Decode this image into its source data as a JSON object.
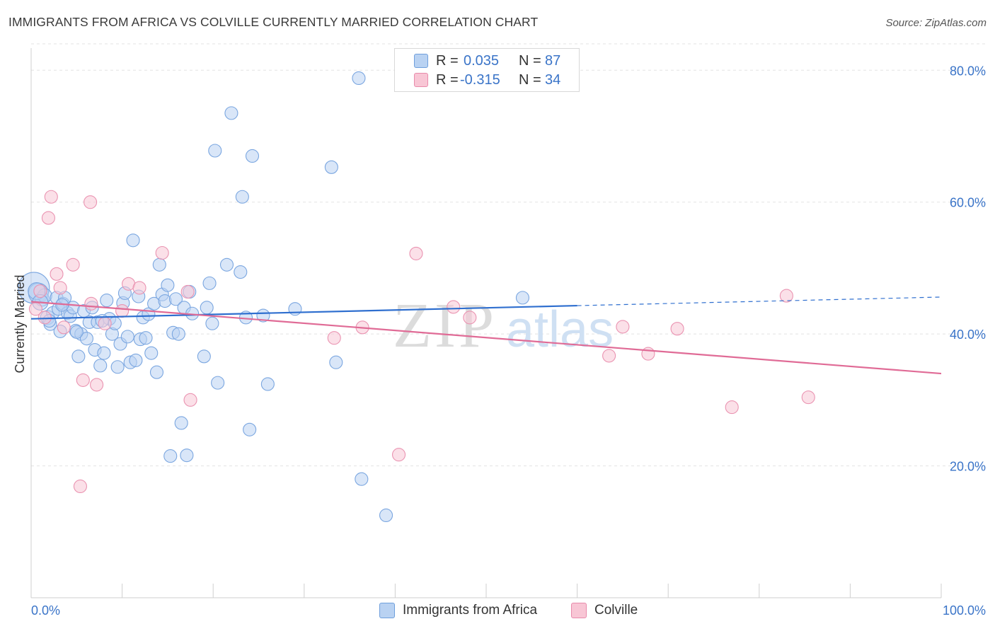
{
  "header": {
    "title": "IMMIGRANTS FROM AFRICA VS COLVILLE CURRENTLY MARRIED CORRELATION CHART",
    "source": "Source: ZipAtlas.com"
  },
  "legend": {
    "r_label": "R =",
    "n_label": "N =",
    "rows": [
      {
        "series": "Immigrants from Africa",
        "r": "0.035",
        "n": "87",
        "color": "#6f9fdc"
      },
      {
        "series": "Colville",
        "r": "-0.315",
        "n": "34",
        "color": "#e88aab"
      }
    ]
  },
  "watermark": {
    "zip": "ZIP",
    "atlas": "atlas"
  },
  "colors": {
    "blue_fill": "#b9d2f2",
    "blue_stroke": "#7aa6e0",
    "blue_line": "#2f6fcf",
    "pink_fill": "#f8c6d5",
    "pink_stroke": "#ea93b1",
    "pink_line": "#e06b96",
    "axis_label": "#3a74c8",
    "grid": "#e3e3e3"
  },
  "chart_data": {
    "type": "scatter",
    "title": "IMMIGRANTS FROM AFRICA VS COLVILLE CURRENTLY MARRIED CORRELATION CHART",
    "xlabel": "",
    "ylabel": "Currently Married",
    "xlim": [
      0,
      100
    ],
    "ylim": [
      0,
      84
    ],
    "x_tick_labels": [
      "0.0%",
      "100.0%"
    ],
    "y_ticks": [
      20,
      40,
      60,
      80
    ],
    "y_tick_labels": [
      "20.0%",
      "40.0%",
      "60.0%",
      "80.0%"
    ],
    "grid": "horizontal dashed",
    "legend_position": "top-center and bottom",
    "series": [
      {
        "name": "Immigrants from Africa",
        "r": 0.035,
        "n": 87,
        "trend": {
          "x0": 0,
          "y0": 42.3,
          "x1": 60,
          "y1": 44.3,
          "dashed_to_x": 100,
          "dashed_to_y": 45.6
        },
        "points": [
          [
            0.3,
            47.0,
            22
          ],
          [
            0.8,
            46.2,
            14
          ],
          [
            1.2,
            45.3,
            10
          ],
          [
            1.5,
            45.8,
            10
          ],
          [
            1.8,
            42.5,
            10
          ],
          [
            2.1,
            41.5,
            9
          ],
          [
            2.4,
            43.2,
            9
          ],
          [
            2.8,
            45.5,
            9
          ],
          [
            3.0,
            43.8,
            9
          ],
          [
            3.2,
            40.4,
            9
          ],
          [
            3.5,
            44.6,
            9
          ],
          [
            3.7,
            45.5,
            9
          ],
          [
            4.0,
            43.2,
            9
          ],
          [
            4.3,
            42.7,
            9
          ],
          [
            4.6,
            44.0,
            9
          ],
          [
            4.9,
            40.5,
            9
          ],
          [
            5.2,
            36.6,
            9
          ],
          [
            5.5,
            40.0,
            9
          ],
          [
            5.8,
            43.5,
            9
          ],
          [
            6.1,
            39.3,
            9
          ],
          [
            6.4,
            41.8,
            9
          ],
          [
            6.7,
            44.0,
            9
          ],
          [
            7.0,
            37.6,
            9
          ],
          [
            7.3,
            41.8,
            9
          ],
          [
            7.6,
            35.2,
            9
          ],
          [
            8.0,
            37.1,
            9
          ],
          [
            8.3,
            45.1,
            9
          ],
          [
            8.6,
            42.3,
            9
          ],
          [
            8.9,
            40.0,
            9
          ],
          [
            9.2,
            41.6,
            9
          ],
          [
            9.5,
            35.0,
            9
          ],
          [
            9.8,
            38.5,
            9
          ],
          [
            10.1,
            44.7,
            9
          ],
          [
            10.3,
            46.2,
            9
          ],
          [
            10.6,
            39.6,
            9
          ],
          [
            10.9,
            35.7,
            9
          ],
          [
            11.2,
            54.2,
            9
          ],
          [
            11.5,
            36.0,
            9
          ],
          [
            11.8,
            45.7,
            9
          ],
          [
            12.0,
            39.2,
            9
          ],
          [
            12.3,
            42.5,
            9
          ],
          [
            12.6,
            39.4,
            9
          ],
          [
            12.9,
            43.0,
            9
          ],
          [
            13.2,
            37.1,
            9
          ],
          [
            13.5,
            44.6,
            9
          ],
          [
            13.8,
            34.2,
            9
          ],
          [
            14.1,
            50.5,
            9
          ],
          [
            14.4,
            46.0,
            9
          ],
          [
            14.7,
            45.0,
            9
          ],
          [
            15.0,
            47.4,
            9
          ],
          [
            15.3,
            21.5,
            9
          ],
          [
            15.6,
            40.2,
            9
          ],
          [
            15.9,
            45.3,
            9
          ],
          [
            16.2,
            40.0,
            9
          ],
          [
            16.5,
            26.5,
            9
          ],
          [
            16.8,
            44.0,
            9
          ],
          [
            17.1,
            21.6,
            9
          ],
          [
            17.4,
            46.4,
            9
          ],
          [
            17.7,
            43.1,
            9
          ],
          [
            19.0,
            36.6,
            9
          ],
          [
            19.3,
            44.0,
            9
          ],
          [
            19.6,
            47.7,
            9
          ],
          [
            19.9,
            41.6,
            9
          ],
          [
            20.2,
            67.8,
            9
          ],
          [
            20.5,
            32.6,
            9
          ],
          [
            21.5,
            50.5,
            9
          ],
          [
            22.0,
            73.5,
            9
          ],
          [
            23.0,
            49.4,
            9
          ],
          [
            23.2,
            60.8,
            9
          ],
          [
            23.6,
            42.5,
            9
          ],
          [
            24.0,
            25.5,
            9
          ],
          [
            24.3,
            67.0,
            9
          ],
          [
            25.5,
            42.8,
            9
          ],
          [
            26.0,
            32.4,
            9
          ],
          [
            29.0,
            43.8,
            9
          ],
          [
            33.0,
            65.3,
            9
          ],
          [
            33.5,
            35.7,
            9
          ],
          [
            36.0,
            78.8,
            9
          ],
          [
            36.3,
            18.0,
            9
          ],
          [
            39.0,
            12.5,
            9
          ],
          [
            54.0,
            45.5,
            9
          ],
          [
            0.6,
            46.5,
            12
          ],
          [
            1.0,
            44.8,
            11
          ],
          [
            2.0,
            42.0,
            9
          ],
          [
            5.0,
            40.3,
            9
          ],
          [
            7.8,
            42.0,
            9
          ],
          [
            3.4,
            44.4,
            9
          ]
        ]
      },
      {
        "name": "Colville",
        "r": -0.315,
        "n": 34,
        "trend": {
          "x0": 0,
          "y0": 44.9,
          "x1": 100,
          "y1": 34.0
        },
        "points": [
          [
            0.5,
            43.8,
            9
          ],
          [
            1.0,
            46.5,
            9
          ],
          [
            1.5,
            42.5,
            9
          ],
          [
            1.9,
            57.6,
            9
          ],
          [
            2.2,
            60.8,
            9
          ],
          [
            2.8,
            49.1,
            9
          ],
          [
            3.2,
            47.0,
            9
          ],
          [
            3.6,
            41.0,
            9
          ],
          [
            4.6,
            50.5,
            9
          ],
          [
            5.4,
            16.9,
            9
          ],
          [
            5.7,
            33.0,
            9
          ],
          [
            6.5,
            60.0,
            9
          ],
          [
            6.6,
            44.6,
            9
          ],
          [
            7.2,
            32.3,
            9
          ],
          [
            8.1,
            41.6,
            9
          ],
          [
            10.0,
            43.5,
            9
          ],
          [
            10.7,
            47.6,
            9
          ],
          [
            11.9,
            47.0,
            9
          ],
          [
            14.4,
            52.3,
            9
          ],
          [
            17.2,
            46.4,
            9
          ],
          [
            17.5,
            30.0,
            9
          ],
          [
            33.3,
            39.4,
            9
          ],
          [
            36.4,
            41.0,
            9
          ],
          [
            40.4,
            21.7,
            9
          ],
          [
            42.3,
            52.2,
            9
          ],
          [
            46.4,
            44.1,
            9
          ],
          [
            48.2,
            42.5,
            9
          ],
          [
            63.5,
            36.7,
            9
          ],
          [
            65.0,
            41.1,
            9
          ],
          [
            67.8,
            37.0,
            9
          ],
          [
            71.0,
            40.8,
            9
          ],
          [
            77.0,
            28.9,
            9
          ],
          [
            83.0,
            45.8,
            9
          ],
          [
            85.4,
            30.4,
            9
          ]
        ]
      }
    ]
  }
}
